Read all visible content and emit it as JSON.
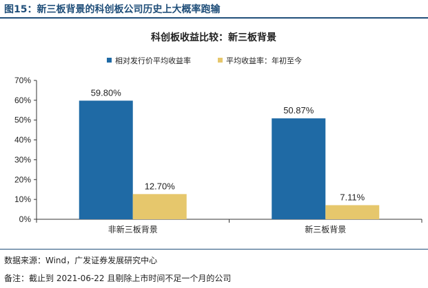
{
  "figure": {
    "title": "图15：新三板背景的科创板公司历史上大概率跑输"
  },
  "footer": {
    "source": "数据来源：Wind，广发证券发展研究中心",
    "remark": "备注：截止到 2021-06-22 且剔除上市时间不足一个月的公司"
  },
  "colors": {
    "series_1": "#1f6aa5",
    "series_2": "#e6c76c",
    "accent": "#1f4e79"
  },
  "chart_data": {
    "type": "bar",
    "title": "科创板收益比较：新三板背景",
    "categories": [
      "非新三板背景",
      "新三板背景"
    ],
    "series": [
      {
        "name": "相对发行价平均收益率",
        "values": [
          59.8,
          50.87
        ],
        "labels": [
          "59.80%",
          "50.87%"
        ]
      },
      {
        "name": "平均收益率：年初至今",
        "values": [
          12.7,
          7.11
        ],
        "labels": [
          "12.70%",
          "7.11%"
        ]
      }
    ],
    "ylim": [
      0,
      70
    ],
    "yticks": [
      "0%",
      "10%",
      "20%",
      "30%",
      "40%",
      "50%",
      "60%",
      "70%"
    ],
    "legend_position": "top-left",
    "grid": false
  }
}
